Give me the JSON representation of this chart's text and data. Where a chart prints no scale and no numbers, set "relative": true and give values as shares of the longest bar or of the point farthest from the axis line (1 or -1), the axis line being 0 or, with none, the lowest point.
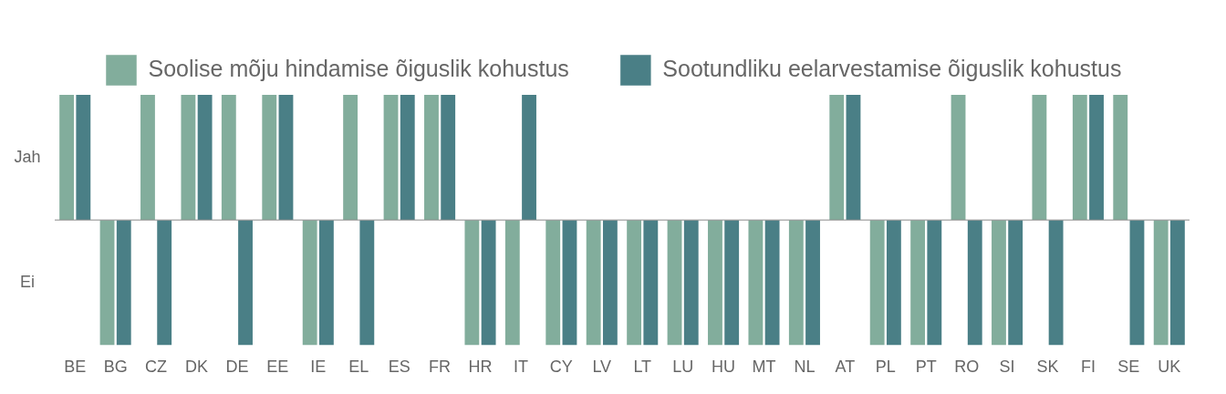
{
  "chart_data": {
    "type": "bar",
    "categories": [
      "BE",
      "BG",
      "CZ",
      "DK",
      "DE",
      "EE",
      "IE",
      "EL",
      "ES",
      "FR",
      "HR",
      "IT",
      "CY",
      "LV",
      "LT",
      "LU",
      "HU",
      "MT",
      "NL",
      "AT",
      "PL",
      "PT",
      "RO",
      "SI",
      "SK",
      "FI",
      "SE",
      "UK"
    ],
    "series": [
      {
        "name": "Soolise mõju hindamise õiguslik kohustus",
        "color": "#82ad9c",
        "values": [
          1,
          -1,
          1,
          1,
          1,
          1,
          -1,
          1,
          1,
          1,
          -1,
          -1,
          -1,
          -1,
          -1,
          -1,
          -1,
          -1,
          -1,
          1,
          -1,
          -1,
          1,
          -1,
          1,
          1,
          1,
          -1
        ]
      },
      {
        "name": "Sootundliku eelarvestamise õiguslik kohustus",
        "color": "#4a7f86",
        "values": [
          1,
          -1,
          -1,
          1,
          -1,
          1,
          -1,
          -1,
          1,
          1,
          -1,
          1,
          -1,
          -1,
          -1,
          -1,
          -1,
          -1,
          -1,
          1,
          -1,
          -1,
          -1,
          -1,
          -1,
          1,
          -1,
          -1
        ]
      }
    ],
    "relative": true,
    "annotations": [
      "Jah",
      "Ei"
    ],
    "grid": false,
    "legend": "top left"
  }
}
